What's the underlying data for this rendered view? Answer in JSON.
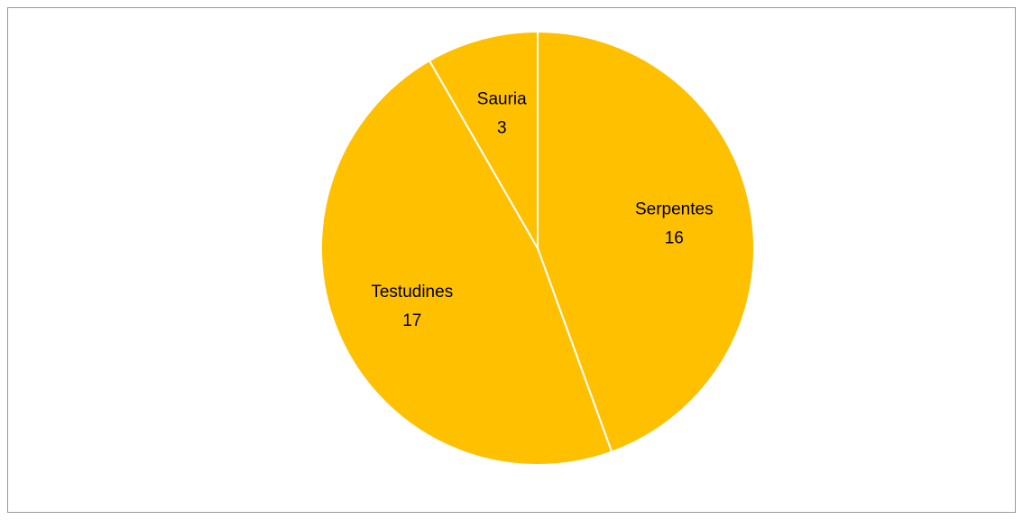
{
  "chart_data": {
    "type": "pie",
    "categories": [
      "Serpentes",
      "Testudines",
      "Sauria"
    ],
    "values": [
      16,
      17,
      3
    ],
    "color": "#ffc000"
  }
}
